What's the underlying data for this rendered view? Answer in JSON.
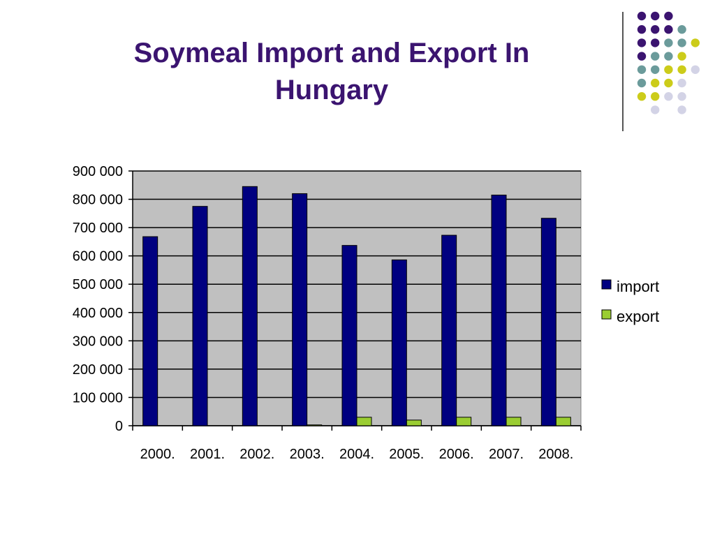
{
  "slide": {
    "title": "Soymeal Import and Export In Hungary"
  },
  "decoration": {
    "dot_colors": {
      "purple": "#3b1470",
      "teal": "#6b9b9b",
      "lime": "#cccc1a",
      "lavender": "#d3d3e6"
    },
    "dot_rows": [
      [
        "purple",
        "purple",
        "purple",
        "none",
        "none"
      ],
      [
        "purple",
        "purple",
        "purple",
        "teal",
        "none"
      ],
      [
        "purple",
        "purple",
        "teal",
        "teal",
        "lime"
      ],
      [
        "purple",
        "teal",
        "teal",
        "lime",
        "none"
      ],
      [
        "teal",
        "teal",
        "lime",
        "lime",
        "lavender"
      ],
      [
        "teal",
        "lime",
        "lime",
        "lavender",
        "none"
      ],
      [
        "lime",
        "lime",
        "lavender",
        "lavender",
        "none"
      ],
      [
        "none",
        "lavender",
        "none",
        "lavender",
        "none"
      ]
    ]
  },
  "chart_data": {
    "type": "bar",
    "title": "Soymeal Import and Export In Hungary",
    "categories": [
      "2000.",
      "2001.",
      "2002.",
      "2003.",
      "2004.",
      "2005.",
      "2006.",
      "2007.",
      "2008."
    ],
    "series": [
      {
        "name": "import",
        "color": "#000080",
        "values": [
          668000,
          775000,
          845000,
          820000,
          637000,
          586000,
          673000,
          815000,
          733000
        ]
      },
      {
        "name": "export",
        "color": "#9acd32",
        "values": [
          0,
          0,
          0,
          3000,
          30000,
          20000,
          30000,
          30000,
          30000
        ]
      }
    ],
    "ylim": [
      0,
      900000
    ],
    "yticks": [
      0,
      100000,
      200000,
      300000,
      400000,
      500000,
      600000,
      700000,
      800000,
      900000
    ],
    "ytick_labels": [
      "0",
      "100 000",
      "200 000",
      "300 000",
      "400 000",
      "500 000",
      "600 000",
      "700 000",
      "800 000",
      "900 000"
    ],
    "xlabel": "",
    "ylabel": "",
    "grid": true,
    "plot_background": "#c0c0c0",
    "legend_position": "right"
  }
}
